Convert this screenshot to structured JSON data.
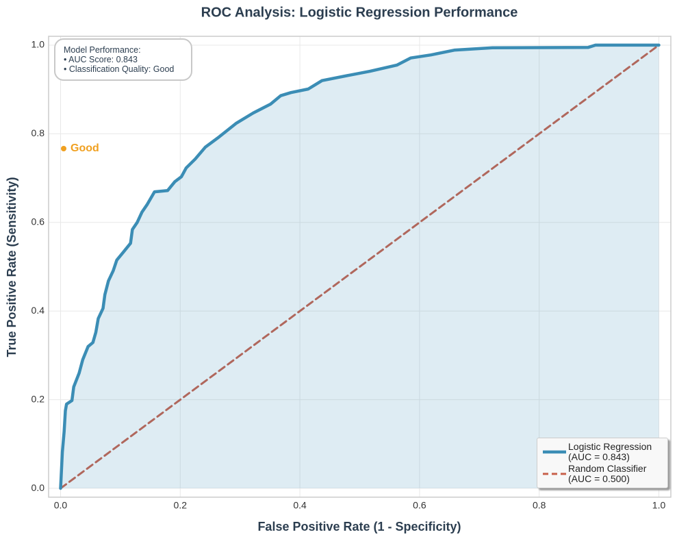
{
  "chart_data": {
    "type": "line",
    "title": "ROC Analysis: Logistic Regression Performance",
    "x_label": "False Positive Rate (1 - Specificity)",
    "y_label": "True Positive Rate (Sensitivity)",
    "xlim": [
      -0.02,
      1.02
    ],
    "ylim": [
      -0.02,
      1.02
    ],
    "xticks": [
      {
        "value": 0,
        "label": "0.0"
      },
      0.2,
      0.4,
      0.6,
      0.8,
      {
        "value": 1,
        "label": "1.0"
      }
    ],
    "yticks": [
      {
        "value": 0,
        "label": "0.0"
      },
      0.2,
      0.4,
      0.6,
      0.8,
      {
        "value": 1,
        "label": "1.0"
      }
    ],
    "grid": true,
    "legend": "lower right",
    "annotation": "Model Performance:\n• AUC Score: 0.843\n• Classification Quality: Good",
    "quality_label": "Good",
    "series": [
      {
        "name": "Logistic Regression\n(AUC = 0.843)",
        "color": "#3b8db5",
        "fill": true,
        "dash": false,
        "x": [
          0,
          0.001,
          0.003,
          0.006,
          0.008,
          0.01,
          0.019,
          0.022,
          0.031,
          0.037,
          0.046,
          0.054,
          0.059,
          0.063,
          0.071,
          0.074,
          0.08,
          0.088,
          0.094,
          0.105,
          0.117,
          0.12,
          0.128,
          0.136,
          0.145,
          0.157,
          0.179,
          0.191,
          0.202,
          0.21,
          0.225,
          0.242,
          0.265,
          0.294,
          0.322,
          0.351,
          0.368,
          0.385,
          0.414,
          0.437,
          0.482,
          0.517,
          0.562,
          0.585,
          0.619,
          0.659,
          0.722,
          0.882,
          0.894,
          1
        ],
        "values": [
          0,
          0.028,
          0.082,
          0.128,
          0.175,
          0.19,
          0.198,
          0.229,
          0.26,
          0.29,
          0.32,
          0.329,
          0.352,
          0.383,
          0.406,
          0.437,
          0.468,
          0.491,
          0.515,
          0.533,
          0.553,
          0.584,
          0.6,
          0.623,
          0.641,
          0.669,
          0.672,
          0.692,
          0.703,
          0.723,
          0.743,
          0.77,
          0.793,
          0.824,
          0.847,
          0.867,
          0.886,
          0.893,
          0.901,
          0.92,
          0.932,
          0.941,
          0.955,
          0.971,
          0.978,
          0.989,
          0.994,
          0.995,
          1,
          1
        ]
      },
      {
        "name": "Random Classifier\n(AUC = 0.500)",
        "color": "#c8604a",
        "fill": false,
        "dash": true,
        "x": [
          0,
          1
        ],
        "values": [
          0,
          1
        ]
      }
    ]
  }
}
